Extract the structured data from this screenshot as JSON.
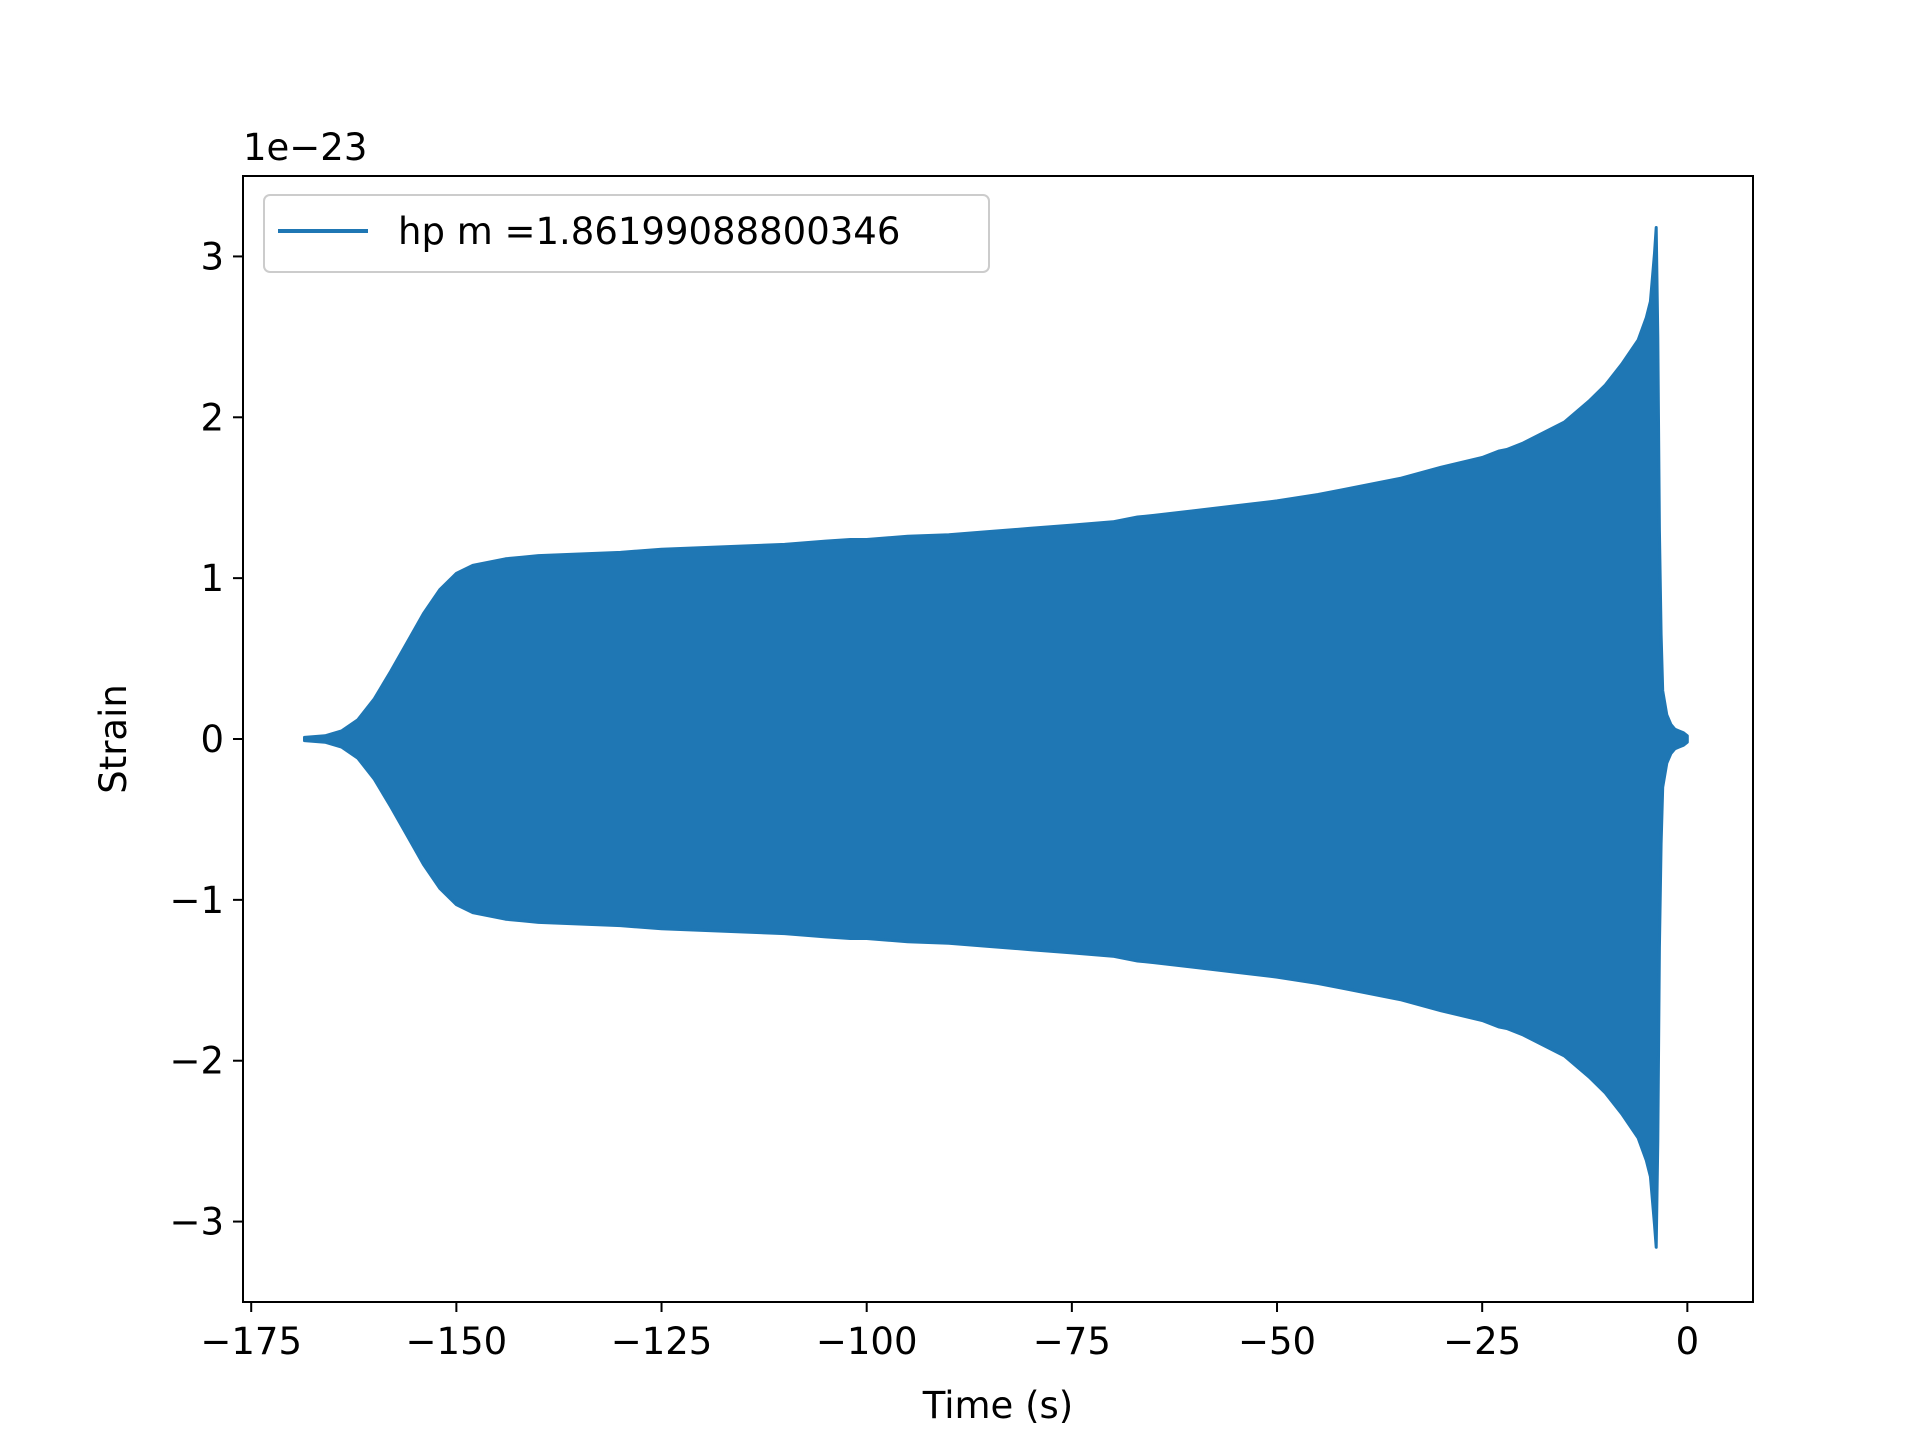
{
  "chart_data": {
    "type": "line",
    "title": "",
    "xlabel": "Time (s)",
    "ylabel": "Strain",
    "y_offset_label": "1e−23",
    "xlim": [
      -176,
      8
    ],
    "ylim": [
      -3.5,
      3.5
    ],
    "y_scale_factor": 1e-23,
    "grid": false,
    "legend_position": "upper left",
    "x_ticks": [
      {
        "value": -175,
        "label": "−175"
      },
      {
        "value": -150,
        "label": "−150"
      },
      {
        "value": -125,
        "label": "−125"
      },
      {
        "value": -100,
        "label": "−100"
      },
      {
        "value": -75,
        "label": "−75"
      },
      {
        "value": -50,
        "label": "−50"
      },
      {
        "value": -25,
        "label": "−25"
      },
      {
        "value": 0,
        "label": "0"
      }
    ],
    "y_ticks": [
      {
        "value": -3,
        "label": "−3"
      },
      {
        "value": -2,
        "label": "−2"
      },
      {
        "value": -1,
        "label": "−1"
      },
      {
        "value": 0,
        "label": "0"
      },
      {
        "value": 1,
        "label": "1"
      },
      {
        "value": 2,
        "label": "2"
      },
      {
        "value": 3,
        "label": "3"
      }
    ],
    "series": [
      {
        "name": "hp m =1.86199088800346",
        "color": "#1f77b4",
        "upper_envelope": {
          "x": [
            -168.5,
            -166,
            -164,
            -162,
            -160,
            -158,
            -156,
            -154,
            -152,
            -150,
            -148,
            -146,
            -144,
            -142,
            -140,
            -135,
            -130,
            -125,
            -120,
            -115,
            -110,
            -105,
            -102,
            -100,
            -95,
            -90,
            -85,
            -80,
            -75,
            -70,
            -68,
            -67,
            -65,
            -60,
            -55,
            -50,
            -45,
            -42,
            -41,
            -40,
            -35,
            -30,
            -25,
            -23,
            -22,
            -20,
            -15,
            -12,
            -10,
            -8,
            -6,
            -5,
            -4.5,
            -4,
            -3.8,
            -3.6,
            -3.4,
            -3.2,
            -3,
            -2.5,
            -2,
            -1.5,
            -1,
            -0.5,
            0
          ],
          "y": [
            0.01,
            0.02,
            0.05,
            0.12,
            0.25,
            0.42,
            0.6,
            0.78,
            0.93,
            1.03,
            1.08,
            1.1,
            1.12,
            1.13,
            1.14,
            1.15,
            1.16,
            1.18,
            1.19,
            1.2,
            1.21,
            1.23,
            1.24,
            1.24,
            1.26,
            1.27,
            1.29,
            1.31,
            1.33,
            1.35,
            1.37,
            1.38,
            1.39,
            1.42,
            1.45,
            1.48,
            1.52,
            1.55,
            1.56,
            1.57,
            1.62,
            1.69,
            1.75,
            1.79,
            1.8,
            1.84,
            1.97,
            2.1,
            2.2,
            2.33,
            2.48,
            2.62,
            2.72,
            3.02,
            3.18,
            2.5,
            1.3,
            0.65,
            0.3,
            0.15,
            0.09,
            0.06,
            0.05,
            0.04,
            0.02
          ]
        },
        "lower_envelope": {
          "x": [
            -168.5,
            -166,
            -164,
            -162,
            -160,
            -158,
            -156,
            -154,
            -152,
            -150,
            -148,
            -146,
            -144,
            -142,
            -140,
            -135,
            -130,
            -125,
            -120,
            -115,
            -110,
            -105,
            -102,
            -100,
            -95,
            -90,
            -85,
            -80,
            -75,
            -70,
            -68,
            -67,
            -65,
            -60,
            -55,
            -50,
            -45,
            -42,
            -41,
            -40,
            -35,
            -30,
            -25,
            -23,
            -22,
            -20,
            -15,
            -12,
            -10,
            -8,
            -6,
            -5,
            -4.5,
            -4,
            -3.8,
            -3.6,
            -3.4,
            -3.2,
            -3,
            -2.5,
            -2,
            -1.5,
            -1,
            -0.5,
            0
          ],
          "y": [
            -0.01,
            -0.02,
            -0.05,
            -0.12,
            -0.25,
            -0.42,
            -0.6,
            -0.78,
            -0.93,
            -1.03,
            -1.08,
            -1.1,
            -1.12,
            -1.13,
            -1.14,
            -1.15,
            -1.16,
            -1.18,
            -1.19,
            -1.2,
            -1.21,
            -1.23,
            -1.24,
            -1.24,
            -1.26,
            -1.27,
            -1.29,
            -1.31,
            -1.33,
            -1.35,
            -1.37,
            -1.38,
            -1.39,
            -1.42,
            -1.45,
            -1.48,
            -1.52,
            -1.55,
            -1.56,
            -1.57,
            -1.62,
            -1.69,
            -1.75,
            -1.79,
            -1.8,
            -1.84,
            -1.97,
            -2.1,
            -2.2,
            -2.33,
            -2.48,
            -2.62,
            -2.72,
            -3.02,
            -3.16,
            -2.5,
            -1.3,
            -0.65,
            -0.3,
            -0.15,
            -0.09,
            -0.06,
            -0.05,
            -0.04,
            -0.02
          ]
        }
      }
    ]
  }
}
